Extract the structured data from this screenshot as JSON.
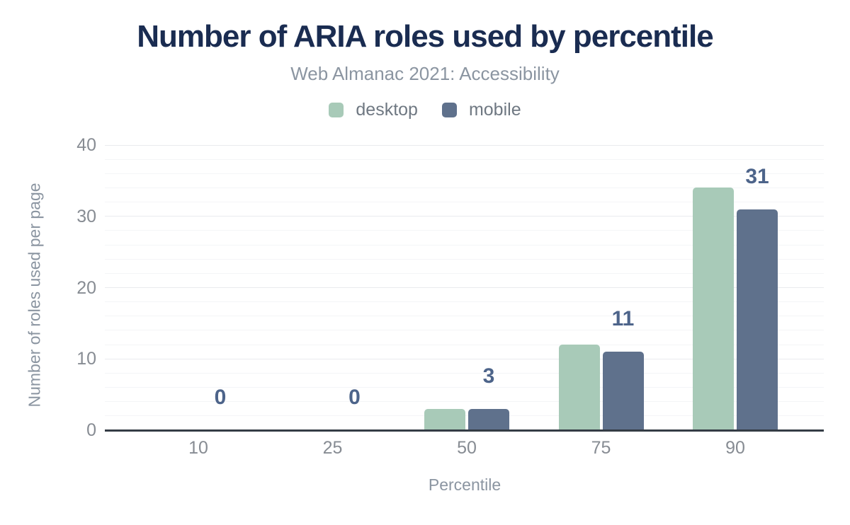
{
  "chart_data": {
    "type": "bar",
    "title": "Number of ARIA roles used by percentile",
    "subtitle": "Web Almanac 2021: Accessibility",
    "xlabel": "Percentile",
    "ylabel": "Number of roles used per page",
    "categories": [
      "10",
      "25",
      "50",
      "75",
      "90"
    ],
    "series": [
      {
        "name": "desktop",
        "color": "#a8cab8",
        "values": [
          0,
          0,
          3,
          12,
          34
        ]
      },
      {
        "name": "mobile",
        "color": "#5f718c",
        "values": [
          0,
          0,
          3,
          11,
          31
        ]
      }
    ],
    "data_labels": {
      "anchored_series": "mobile",
      "values": [
        "0",
        "0",
        "3",
        "11",
        "31"
      ],
      "color": "#4d648a"
    },
    "ylim": [
      0,
      40
    ],
    "yticks": [
      0,
      10,
      20,
      30,
      40
    ],
    "minor_grid_step": 2,
    "grid": true,
    "legend_position": "top"
  },
  "colors": {
    "title": "#1a2c51",
    "subtitle": "#8b95a1",
    "tick_label": "#878c93",
    "desktop_bar": "#a8cab8",
    "mobile_bar": "#5f718c",
    "data_label": "#4d648a",
    "axis_line": "#343c45",
    "grid_major": "#e9ebee",
    "grid_minor": "#f4f5f7",
    "background": "#ffffff"
  }
}
